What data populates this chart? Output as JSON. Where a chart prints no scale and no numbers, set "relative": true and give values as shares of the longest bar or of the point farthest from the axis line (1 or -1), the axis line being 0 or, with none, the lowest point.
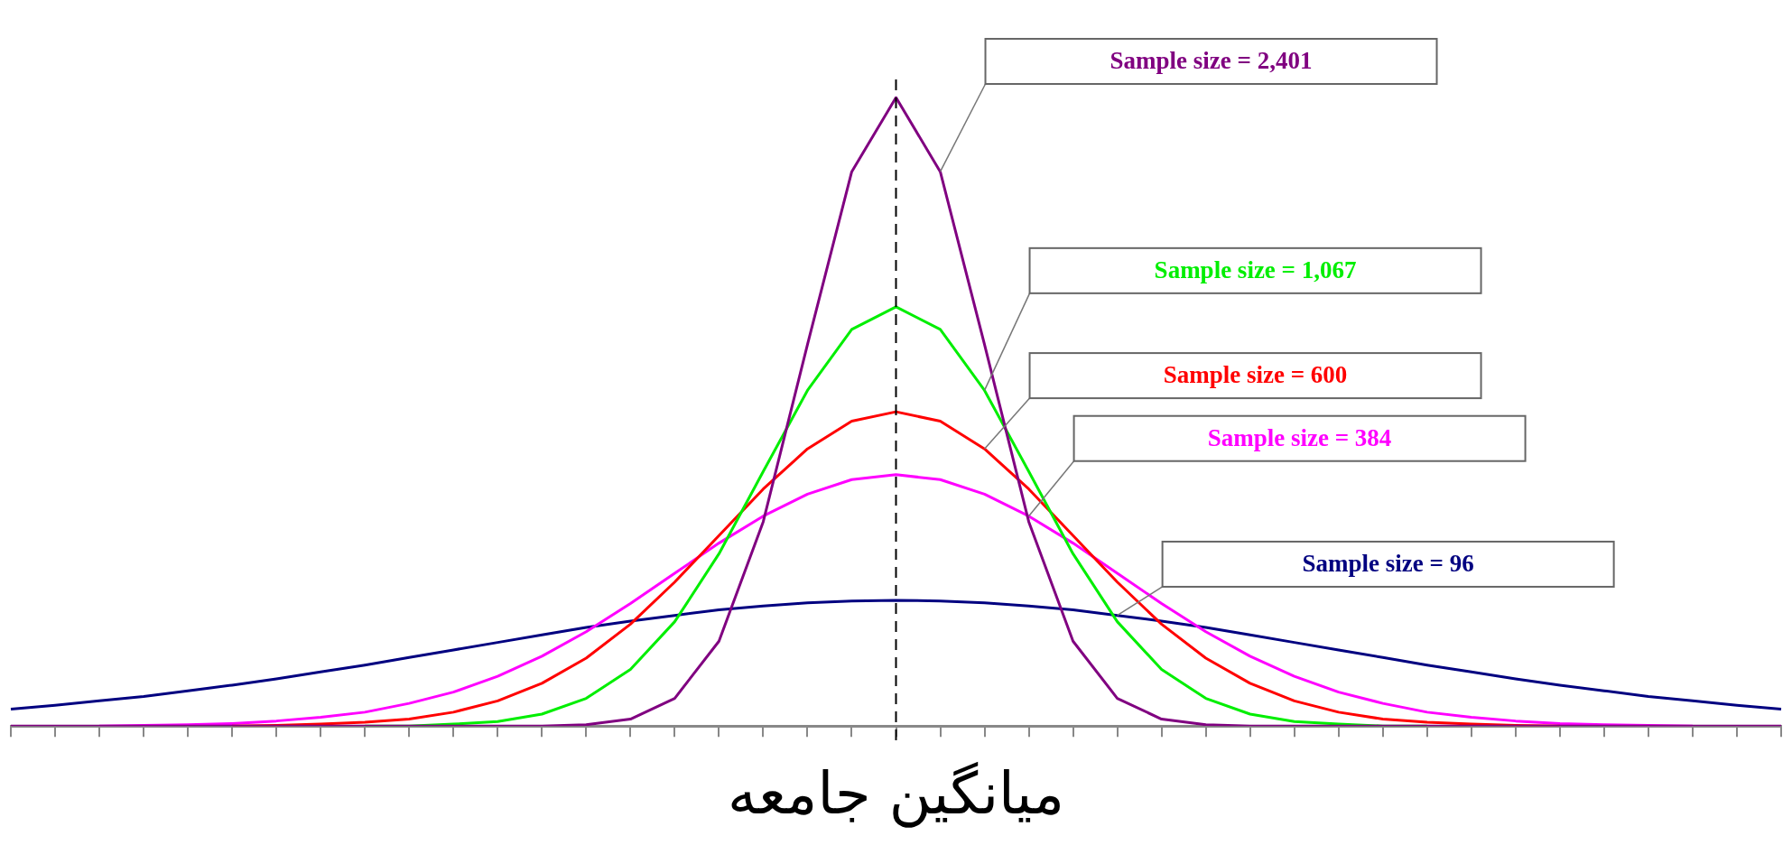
{
  "chart_data": {
    "type": "line",
    "relative": true,
    "xlabel": "میانگین جامعه",
    "legend": false,
    "grid": false,
    "marker": "none",
    "categories": [
      null,
      null,
      null,
      null,
      null,
      null,
      null,
      null,
      null,
      null,
      null,
      null,
      null,
      null,
      null,
      null,
      null,
      null,
      null,
      null,
      null,
      null,
      null,
      null,
      null,
      null,
      null,
      null,
      null,
      null,
      null,
      null,
      null,
      null,
      null,
      null,
      null,
      null,
      null,
      null,
      null
    ],
    "series": [
      {
        "name": "Sample size = 2,401",
        "color": "#800080",
        "values": [
          0,
          0,
          0,
          0,
          0,
          0,
          0,
          0,
          0,
          0,
          0,
          0,
          0,
          0.002,
          0.011,
          0.044,
          0.135,
          0.325,
          0.607,
          0.882,
          1,
          0.882,
          0.607,
          0.325,
          0.135,
          0.044,
          0.011,
          0.002,
          0,
          0,
          0,
          0,
          0,
          0,
          0,
          0,
          0,
          0,
          0,
          0,
          0
        ]
      },
      {
        "name": "Sample size = 1,067",
        "color": "#00ee00",
        "values": [
          null,
          null,
          null,
          null,
          null,
          null,
          null,
          null,
          0,
          0,
          0.003,
          0.007,
          0.019,
          0.044,
          0.09,
          0.166,
          0.274,
          0.405,
          0.534,
          0.631,
          0.667,
          0.631,
          0.534,
          0.405,
          0.274,
          0.166,
          0.09,
          0.044,
          0.019,
          0.007,
          0.003,
          0,
          0,
          null,
          null,
          null,
          null,
          null,
          null,
          null,
          null
        ]
      },
      {
        "name": "Sample size = 600",
        "color": "#ff0000",
        "values": [
          null,
          null,
          null,
          null,
          null,
          0,
          0.001,
          0.003,
          0.006,
          0.011,
          0.022,
          0.04,
          0.068,
          0.108,
          0.162,
          0.229,
          0.303,
          0.377,
          0.441,
          0.485,
          0.5,
          0.485,
          0.441,
          0.377,
          0.303,
          0.229,
          0.162,
          0.108,
          0.068,
          0.04,
          0.022,
          0.011,
          0.006,
          0.003,
          0.001,
          0,
          null,
          null,
          null,
          null,
          null
        ]
      },
      {
        "name": "Sample size = 384",
        "color": "#ff00ff",
        "values": [
          null,
          null,
          0,
          0.001,
          0.002,
          0.004,
          0.008,
          0.014,
          0.022,
          0.036,
          0.054,
          0.079,
          0.111,
          0.15,
          0.195,
          0.243,
          0.291,
          0.334,
          0.369,
          0.392,
          0.4,
          0.392,
          0.369,
          0.334,
          0.291,
          0.243,
          0.195,
          0.15,
          0.111,
          0.079,
          0.054,
          0.036,
          0.022,
          0.014,
          0.008,
          0.004,
          0.002,
          0.001,
          0,
          null,
          null
        ]
      },
      {
        "name": "Sample size = 96",
        "color": "#000080",
        "values": [
          0.027,
          0.033,
          0.04,
          0.047,
          0.056,
          0.065,
          0.075,
          0.086,
          0.097,
          0.109,
          0.121,
          0.133,
          0.145,
          0.157,
          0.167,
          0.176,
          0.185,
          0.191,
          0.196,
          0.199,
          0.2,
          0.199,
          0.196,
          0.191,
          0.185,
          0.176,
          0.167,
          0.157,
          0.145,
          0.133,
          0.121,
          0.109,
          0.097,
          0.086,
          0.075,
          0.065,
          0.056,
          0.047,
          0.04,
          0.033,
          0.027
        ]
      }
    ]
  }
}
